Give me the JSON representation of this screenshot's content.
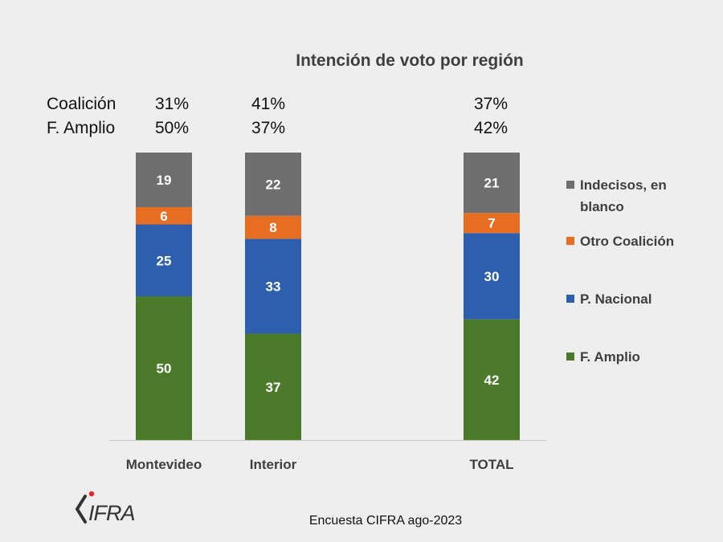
{
  "chart_data": {
    "type": "bar",
    "stacked": true,
    "title": "Intención de voto por región",
    "categories": [
      "Montevideo",
      "Interior",
      "TOTAL"
    ],
    "series": [
      {
        "name": "F. Amplio",
        "color": "#4a7a2a",
        "values": [
          50,
          37,
          42
        ]
      },
      {
        "name": "P. Nacional",
        "color": "#2d5fae",
        "values": [
          25,
          33,
          30
        ]
      },
      {
        "name": "Otro Coalición",
        "color": "#e66d22",
        "values": [
          6,
          8,
          7
        ]
      },
      {
        "name": "Indecisos, en blanco",
        "color": "#6e6e6e",
        "values": [
          19,
          22,
          21
        ]
      }
    ],
    "ylim": [
      0,
      100
    ],
    "legend": "right",
    "grid": false
  },
  "summary": {
    "rows": [
      {
        "label": "Coalición",
        "values": [
          "31%",
          "41%",
          "37%"
        ]
      },
      {
        "label": "F. Amplio",
        "values": [
          "50%",
          "37%",
          "42%"
        ]
      }
    ]
  },
  "legend_items": [
    {
      "label_line1": "Indecisos, en",
      "label_line2": "blanco",
      "color": "#6e6e6e"
    },
    {
      "label_line1": "Otro Coalición",
      "label_line2": "",
      "color": "#e66d22"
    },
    {
      "label_line1": "P. Nacional",
      "label_line2": "",
      "color": "#2d5fae"
    },
    {
      "label_line1": "F. Amplio",
      "label_line2": "",
      "color": "#4a7a2a"
    }
  ],
  "source": "Encuesta CIFRA ago-2023",
  "logo": {
    "text": "CIFRA",
    "accent_color": "#d62b2b"
  }
}
